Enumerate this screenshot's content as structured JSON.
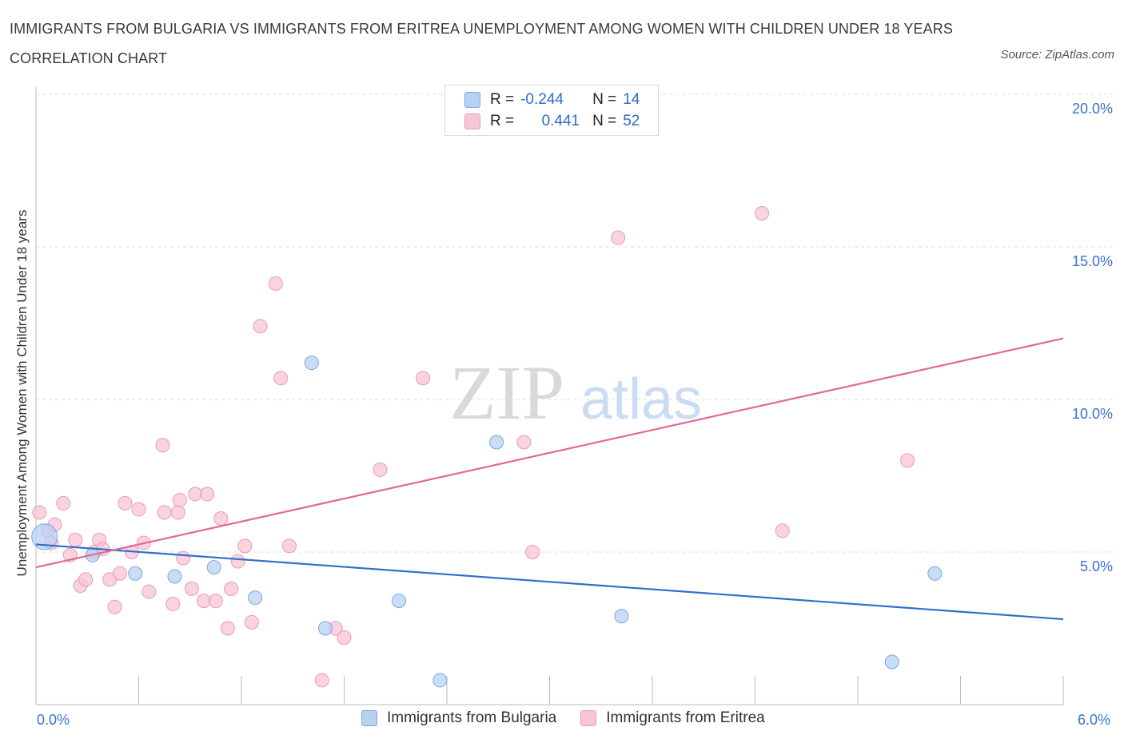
{
  "title": "IMMIGRANTS FROM BULGARIA VS IMMIGRANTS FROM ERITREA UNEMPLOYMENT AMONG WOMEN WITH CHILDREN UNDER 18 YEARS CORRELATION CHART",
  "source": "Source: ZipAtlas.com",
  "watermark": {
    "zip": "ZIP",
    "atlas": "atlas"
  },
  "legend": {
    "r_label": "R =",
    "n_label": "N =",
    "bulgaria": {
      "r": "-0.244",
      "n": "14"
    },
    "eritrea": {
      "r": "0.441",
      "n": "52"
    }
  },
  "colors": {
    "bulgaria_fill": "#b7d1f3",
    "bulgaria_stroke": "#7da6e0",
    "bulgaria_line": "#2f6fcc",
    "eritrea_fill": "#f7c6d5",
    "eritrea_stroke": "#eb9ab3",
    "eritrea_line": "#e06a93",
    "tick": "#3b73c8"
  },
  "chart_data": {
    "type": "scatter",
    "xlabel": "",
    "ylabel": "Unemployment Among Women with Children Under 18 years",
    "x_tick_labels": {
      "left": "0.0%",
      "right": "6.0%"
    },
    "y_tick_labels": [
      "5.0%",
      "10.0%",
      "15.0%",
      "20.0%"
    ],
    "y_tick_values": [
      5,
      10,
      15,
      20
    ],
    "xlim": [
      0,
      6
    ],
    "ylim": [
      0,
      20
    ],
    "grid": true,
    "series": [
      {
        "name": "Immigrants from Bulgaria",
        "points": [
          [
            0.05,
            5.5
          ],
          [
            0.33,
            4.9
          ],
          [
            0.58,
            4.3
          ],
          [
            0.81,
            4.2
          ],
          [
            1.04,
            4.5
          ],
          [
            1.28,
            3.5
          ],
          [
            1.61,
            11.2
          ],
          [
            1.69,
            2.5
          ],
          [
            2.12,
            3.4
          ],
          [
            2.36,
            0.8
          ],
          [
            2.69,
            8.6
          ],
          [
            3.42,
            2.9
          ],
          [
            5.0,
            1.4
          ],
          [
            5.25,
            4.3
          ]
        ],
        "trend": {
          "x": [
            0.0,
            6.0
          ],
          "y": [
            5.25,
            2.8
          ]
        }
      },
      {
        "name": "Immigrants from Eritrea",
        "points": [
          [
            0.02,
            6.3
          ],
          [
            0.07,
            5.7
          ],
          [
            0.09,
            5.3
          ],
          [
            0.11,
            5.9
          ],
          [
            0.16,
            6.6
          ],
          [
            0.2,
            4.9
          ],
          [
            0.23,
            5.4
          ],
          [
            0.26,
            3.9
          ],
          [
            0.29,
            4.1
          ],
          [
            0.34,
            5.0
          ],
          [
            0.37,
            5.4
          ],
          [
            0.39,
            5.1
          ],
          [
            0.43,
            4.1
          ],
          [
            0.46,
            3.2
          ],
          [
            0.49,
            4.3
          ],
          [
            0.52,
            6.6
          ],
          [
            0.56,
            5.0
          ],
          [
            0.6,
            6.4
          ],
          [
            0.63,
            5.3
          ],
          [
            0.66,
            3.7
          ],
          [
            0.74,
            8.5
          ],
          [
            0.75,
            6.3
          ],
          [
            0.8,
            3.3
          ],
          [
            0.83,
            6.3
          ],
          [
            0.84,
            6.7
          ],
          [
            0.86,
            4.8
          ],
          [
            0.91,
            3.8
          ],
          [
            0.93,
            6.9
          ],
          [
            0.98,
            3.4
          ],
          [
            1.0,
            6.9
          ],
          [
            1.05,
            3.4
          ],
          [
            1.08,
            6.1
          ],
          [
            1.12,
            2.5
          ],
          [
            1.14,
            3.8
          ],
          [
            1.18,
            4.7
          ],
          [
            1.22,
            5.2
          ],
          [
            1.26,
            2.7
          ],
          [
            1.31,
            12.4
          ],
          [
            1.4,
            13.8
          ],
          [
            1.43,
            10.7
          ],
          [
            1.48,
            5.2
          ],
          [
            1.67,
            0.8
          ],
          [
            1.75,
            2.5
          ],
          [
            1.8,
            2.2
          ],
          [
            2.01,
            7.7
          ],
          [
            2.26,
            10.7
          ],
          [
            2.85,
            8.6
          ],
          [
            2.9,
            5.0
          ],
          [
            3.4,
            15.3
          ],
          [
            4.24,
            16.1
          ],
          [
            4.36,
            5.7
          ],
          [
            5.09,
            8.0
          ]
        ],
        "trend": {
          "x": [
            0.0,
            6.0
          ],
          "y": [
            4.5,
            12.0
          ]
        }
      }
    ],
    "legend_position": "top-center"
  }
}
